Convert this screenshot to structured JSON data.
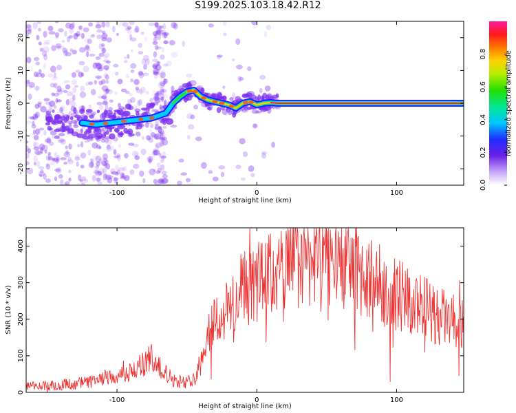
{
  "title": "S199.2025.103.18.42.R12",
  "colors": {
    "snr_line": "#ee3333",
    "spectrum_points": "#7a2cf0",
    "axis": "#000000"
  },
  "chart_data": [
    {
      "type": "heatmap",
      "xlabel": "Height of straight line (km)",
      "ylabel": "Frequency (Hz)",
      "xlim": [
        -165,
        148
      ],
      "ylim": [
        -25,
        25
      ],
      "xticks": [
        -100,
        0,
        100
      ],
      "yticks": [
        -20,
        -10,
        0,
        10,
        20
      ],
      "grid": false,
      "ridge_x": [
        -125,
        -115,
        -105,
        -95,
        -85,
        -75,
        -65,
        -60,
        -55,
        -50,
        -45,
        -40,
        -35,
        -30,
        -25,
        -20,
        -15,
        -10,
        -5,
        0,
        5,
        10,
        15,
        148
      ],
      "ridge_y": [
        -6,
        -6.5,
        -6,
        -5.5,
        -5,
        -4.5,
        -3,
        0,
        2,
        3.5,
        4,
        2,
        1,
        0.5,
        0,
        -0.5,
        -1.5,
        0,
        0.5,
        -0.5,
        0,
        0.2,
        0,
        0
      ],
      "colorbar": {
        "label": "Normalized spectral amplitude",
        "range": [
          0,
          1
        ],
        "ticks": [
          "0.0",
          "0.2",
          "0.4",
          "0.6",
          "0.8"
        ]
      }
    },
    {
      "type": "line",
      "xlabel": "Height of straight line (km)",
      "ylabel": "SNR (10 * v/v)",
      "xlim": [
        -165,
        148
      ],
      "ylim": [
        0,
        450
      ],
      "xticks": [
        -100,
        0,
        100
      ],
      "yticks": [
        0,
        100,
        200,
        300,
        400
      ],
      "grid": false,
      "series": [
        {
          "x": [
            -165,
            -150,
            -135,
            -120,
            -110,
            -100,
            -90,
            -80,
            -75,
            -70,
            -60,
            -50,
            -45,
            -40,
            -37,
            -33,
            -30,
            -25,
            -20,
            -10,
            0,
            10,
            20,
            30,
            40,
            50,
            60,
            70,
            80,
            90,
            100,
            110,
            120,
            130,
            140,
            148
          ],
          "values": [
            15,
            18,
            22,
            28,
            35,
            45,
            55,
            80,
            95,
            70,
            35,
            25,
            45,
            80,
            150,
            190,
            200,
            205,
            230,
            270,
            300,
            320,
            340,
            360,
            375,
            380,
            360,
            340,
            310,
            290,
            270,
            250,
            230,
            210,
            195,
            180
          ]
        }
      ]
    }
  ]
}
